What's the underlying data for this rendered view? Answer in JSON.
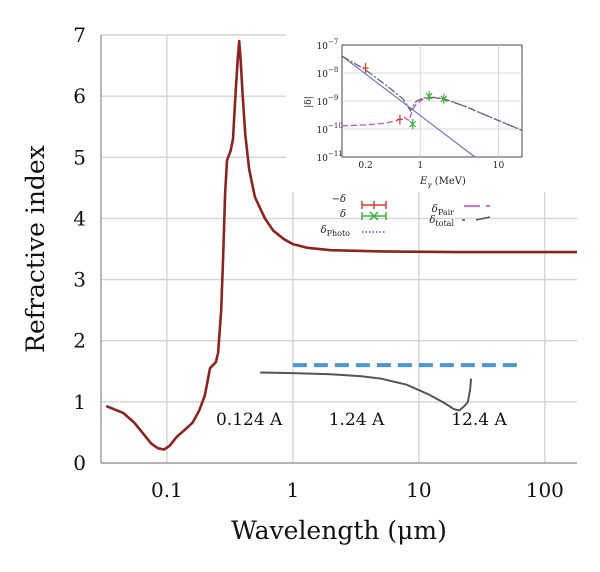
{
  "chart_data": [
    {
      "type": "line",
      "xlabel": "Wavelength (μm)",
      "ylabel": "Refractive index",
      "xscale": "log",
      "xlim": [
        0.03,
        180
      ],
      "ylim": [
        0,
        7
      ],
      "xticks": [
        {
          "value": 0.1,
          "label": "0.1"
        },
        {
          "value": 1,
          "label": "1"
        },
        {
          "value": 10,
          "label": "10"
        },
        {
          "value": 100,
          "label": "100"
        }
      ],
      "yticks": [
        {
          "value": 0,
          "label": "0"
        },
        {
          "value": 1,
          "label": "1"
        },
        {
          "value": 2,
          "label": "2"
        },
        {
          "value": 3,
          "label": "3"
        },
        {
          "value": 4,
          "label": "4"
        },
        {
          "value": 5,
          "label": "5"
        },
        {
          "value": 6,
          "label": "6"
        },
        {
          "value": 7,
          "label": "7"
        }
      ],
      "grid": true,
      "series": [
        {
          "color": "#8b2420",
          "points": [
            [
              0.033,
              0.93
            ],
            [
              0.045,
              0.82
            ],
            [
              0.055,
              0.66
            ],
            [
              0.065,
              0.48
            ],
            [
              0.075,
              0.32
            ],
            [
              0.085,
              0.24
            ],
            [
              0.095,
              0.22
            ],
            [
              0.105,
              0.28
            ],
            [
              0.12,
              0.43
            ],
            [
              0.14,
              0.55
            ],
            [
              0.16,
              0.66
            ],
            [
              0.18,
              0.85
            ],
            [
              0.2,
              1.1
            ],
            [
              0.22,
              1.55
            ],
            [
              0.245,
              1.65
            ],
            [
              0.255,
              1.8
            ],
            [
              0.27,
              2.5
            ],
            [
              0.28,
              3.4
            ],
            [
              0.29,
              4.4
            ],
            [
              0.3,
              4.95
            ],
            [
              0.32,
              5.1
            ],
            [
              0.335,
              5.3
            ],
            [
              0.35,
              6.0
            ],
            [
              0.365,
              6.6
            ],
            [
              0.375,
              6.9
            ],
            [
              0.385,
              6.6
            ],
            [
              0.4,
              6.0
            ],
            [
              0.42,
              5.35
            ],
            [
              0.45,
              4.8
            ],
            [
              0.5,
              4.35
            ],
            [
              0.6,
              4.0
            ],
            [
              0.7,
              3.8
            ],
            [
              0.85,
              3.66
            ],
            [
              1.0,
              3.58
            ],
            [
              1.3,
              3.52
            ],
            [
              2,
              3.48
            ],
            [
              5,
              3.46
            ],
            [
              20,
              3.45
            ],
            [
              100,
              3.45
            ],
            [
              180,
              3.45
            ]
          ]
        }
      ],
      "dashed_line": {
        "color": "#4b95d4",
        "from": 1.0,
        "to": 60,
        "y": 1.6
      },
      "gray_curve": {
        "color": "#555555",
        "points": [
          [
            0.55,
            1.48
          ],
          [
            1,
            1.47
          ],
          [
            2,
            1.45
          ],
          [
            3.5,
            1.42
          ],
          [
            5,
            1.38
          ],
          [
            8,
            1.28
          ],
          [
            12,
            1.12
          ],
          [
            16,
            0.98
          ],
          [
            19,
            0.88
          ],
          [
            21,
            0.86
          ],
          [
            23,
            0.93
          ],
          [
            24.5,
            1.0
          ],
          [
            25.5,
            1.2
          ],
          [
            26,
            1.38
          ]
        ]
      },
      "annotations": [
        {
          "text": "0.124 A",
          "x": 0.45,
          "y": 0.62
        },
        {
          "text": "1.24 A",
          "x": 3.2,
          "y": 0.62
        },
        {
          "text": "12.4 A",
          "x": 30,
          "y": 0.62
        }
      ]
    },
    {
      "type": "line",
      "xlabel": "E",
      "xlabel_sub": "γ",
      "xlabel_suffix": " (MeV)",
      "ylabel": "|δ|",
      "xscale": "log",
      "yscale": "log",
      "xlim": [
        0.1,
        20
      ],
      "ylim": [
        1e-11,
        1e-07
      ],
      "xticks": [
        {
          "value": 0.1,
          "label": ""
        },
        {
          "value": 1,
          "label": "1"
        },
        {
          "value": 10,
          "label": "10"
        }
      ],
      "yticks": [
        {
          "value": 1e-07,
          "label": "10",
          "exp": "−7"
        },
        {
          "value": 1e-08,
          "label": "10",
          "exp": "−8"
        },
        {
          "value": 1e-09,
          "label": "10",
          "exp": "−9"
        },
        {
          "value": 1e-10,
          "label": "10",
          "exp": "−10"
        },
        {
          "value": 1e-11,
          "label": "10",
          "exp": "−11"
        }
      ],
      "grid": true,
      "series": [
        {
          "key": "photo",
          "color": "#6a6ad0",
          "points": [
            [
              0.1,
              4e-08
            ],
            [
              5,
              1e-11
            ]
          ]
        },
        {
          "key": "pair",
          "color": "#d04cc0",
          "points": [
            [
              0.1,
              1.3e-10
            ],
            [
              0.2,
              1.4e-10
            ],
            [
              0.35,
              1.6e-10
            ],
            [
              0.5,
              2e-10
            ],
            [
              0.62,
              2.6e-10
            ],
            [
              0.72,
              2e-10
            ],
            [
              0.8,
              5e-10
            ],
            [
              0.9,
              8e-10
            ],
            [
              1.1,
              1.2e-09
            ],
            [
              1.5,
              1.3e-09
            ],
            [
              2,
              1.2e-09
            ],
            [
              4,
              6e-10
            ],
            [
              8,
              2.6e-10
            ],
            [
              20,
              9e-11
            ]
          ]
        },
        {
          "key": "total",
          "color": "#666666",
          "points": [
            [
              0.1,
              4e-08
            ],
            [
              0.2,
              1.3e-08
            ],
            [
              0.4,
              3e-09
            ],
            [
              0.6,
              1.2e-09
            ],
            [
              0.75,
              4.5e-10
            ],
            [
              0.82,
              7e-10
            ],
            [
              0.9,
              1e-09
            ],
            [
              1.1,
              1.3e-09
            ],
            [
              1.5,
              1.35e-09
            ],
            [
              2,
              1.2e-09
            ],
            [
              4,
              6e-10
            ],
            [
              8,
              2.6e-10
            ],
            [
              20,
              9e-11
            ]
          ]
        }
      ],
      "measurements": [
        {
          "key": "neg_delta",
          "color": "#e03a2c",
          "points": [
            [
              0.2,
              1.5e-08
            ],
            [
              0.55,
              2.2e-10
            ]
          ]
        },
        {
          "key": "delta",
          "color": "#3cb43c",
          "points": [
            [
              0.8,
              1.5e-10
            ],
            [
              1.3,
              1.5e-09
            ],
            [
              2.0,
              1.2e-09
            ]
          ]
        }
      ]
    }
  ],
  "legend": {
    "position": "below-inset",
    "items": [
      {
        "key": "neg_delta",
        "main": "−δ",
        "sub": "",
        "style": "errorbar",
        "color": "#e03a2c"
      },
      {
        "key": "delta",
        "main": "δ",
        "sub": "",
        "style": "x-errorbar",
        "color": "#3cb43c"
      },
      {
        "key": "photo",
        "main": "δ",
        "sub": "Photo",
        "style": "dotted",
        "color": "#5050c0"
      },
      {
        "key": "pair",
        "main": "δ",
        "sub": "Pair",
        "style": "dashed",
        "color": "#d04cc0"
      },
      {
        "key": "total",
        "main": "δ",
        "sub": "total",
        "style": "dashdot",
        "color": "#555555"
      }
    ]
  }
}
